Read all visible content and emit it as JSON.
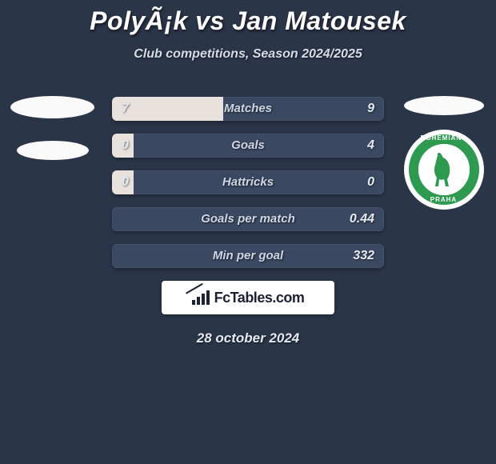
{
  "background_color": "#2a3548",
  "title": "PolyÃ¡k vs Jan Matousek",
  "subtitle": "Club competitions, Season 2024/2025",
  "date": "28 october 2024",
  "brand_text": "FcTables.com",
  "left_logos": {
    "ellipse_count": 2
  },
  "right_logos": {
    "ellipse_count": 1,
    "club": {
      "ring_color": "#2e9a4f",
      "top_text": "BOHEMIANS",
      "bottom_text": "PRAHA"
    }
  },
  "bars": {
    "track_color": "#3a4861",
    "fill_color": "#e9e2dc",
    "rows": [
      {
        "label": "Matches",
        "left": "7",
        "right": "9",
        "left_pct": 41,
        "right_pct": 0
      },
      {
        "label": "Goals",
        "left": "0",
        "right": "4",
        "left_pct": 8,
        "right_pct": 0
      },
      {
        "label": "Hattricks",
        "left": "0",
        "right": "0",
        "left_pct": 8,
        "right_pct": 0
      },
      {
        "label": "Goals per match",
        "left": "",
        "right": "0.44",
        "left_pct": 0,
        "right_pct": 0
      },
      {
        "label": "Min per goal",
        "left": "",
        "right": "332",
        "left_pct": 0,
        "right_pct": 0
      }
    ]
  }
}
